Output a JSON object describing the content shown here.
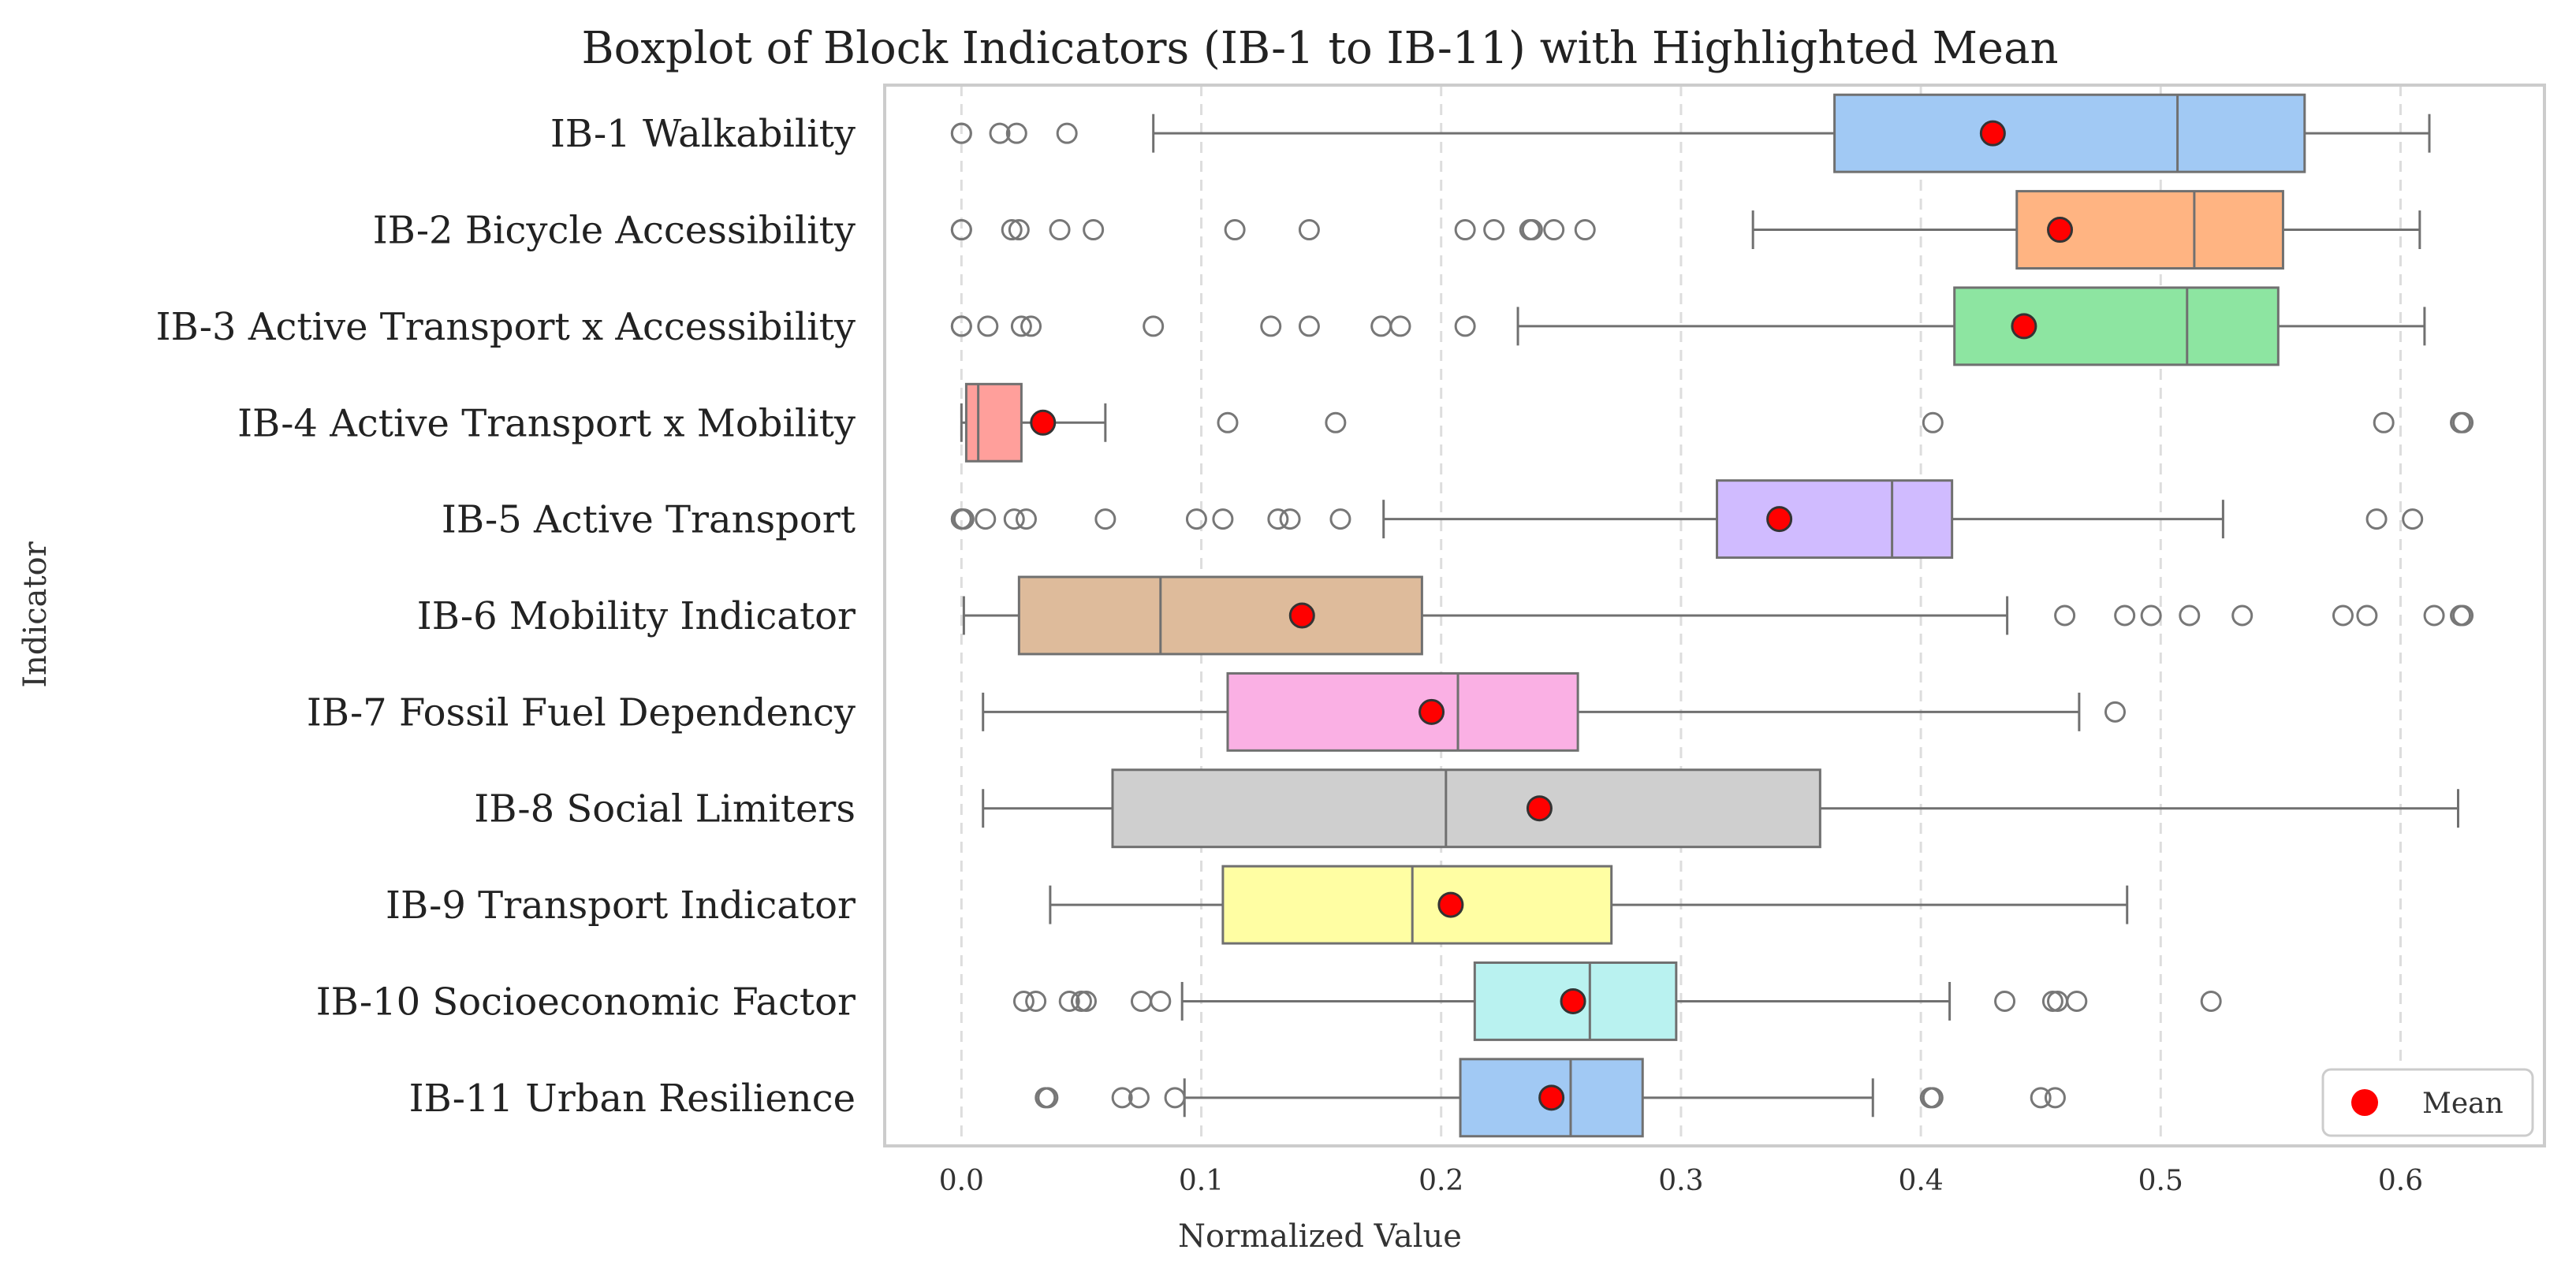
{
  "chart_data": {
    "type": "boxplot",
    "orientation": "horizontal",
    "title": "Boxplot of Block Indicators (IB-1 to IB-11) with Highlighted Mean",
    "xlabel": "Normalized Value",
    "ylabel": "Indicator",
    "xlim": [
      -0.032,
      0.66
    ],
    "xticks": [
      0.0,
      0.1,
      0.2,
      0.3,
      0.4,
      0.5,
      0.6
    ],
    "xtick_labels": [
      "0.0",
      "0.1",
      "0.2",
      "0.3",
      "0.4",
      "0.5",
      "0.6"
    ],
    "grid": "vertical-dashed",
    "legend": {
      "position": "bottom-right",
      "entries": [
        {
          "label": "Mean",
          "marker": "circle",
          "color": "#ff0000"
        }
      ]
    },
    "series": [
      {
        "name": "IB-1 Walkability",
        "color": "#a1c9f4",
        "whisker_low": 0.08,
        "q1": 0.364,
        "median": 0.507,
        "q3": 0.56,
        "whisker_high": 0.612,
        "mean": 0.43,
        "outliers": [
          0.0,
          0.0,
          0.016,
          0.023,
          0.044
        ]
      },
      {
        "name": "IB-2 Bicycle Accessibility",
        "color": "#ffb482",
        "whisker_low": 0.33,
        "q1": 0.44,
        "median": 0.514,
        "q3": 0.551,
        "whisker_high": 0.608,
        "mean": 0.458,
        "outliers": [
          0.0,
          0.0,
          0.021,
          0.024,
          0.041,
          0.055,
          0.114,
          0.145,
          0.21,
          0.222,
          0.237,
          0.238,
          0.247,
          0.26
        ]
      },
      {
        "name": "IB-3 Active Transport x Accessibility",
        "color": "#8de5a1",
        "whisker_low": 0.232,
        "q1": 0.414,
        "median": 0.511,
        "q3": 0.549,
        "whisker_high": 0.61,
        "mean": 0.443,
        "outliers": [
          0.0,
          0.0,
          0.011,
          0.025,
          0.029,
          0.08,
          0.129,
          0.145,
          0.175,
          0.183,
          0.21
        ]
      },
      {
        "name": "IB-4 Active Transport x Mobility",
        "color": "#ff9f9b",
        "whisker_low": 0.0,
        "q1": 0.002,
        "median": 0.007,
        "q3": 0.025,
        "whisker_high": 0.06,
        "mean": 0.034,
        "outliers": [
          0.111,
          0.156,
          0.405,
          0.593,
          0.625,
          0.626
        ]
      },
      {
        "name": "IB-5 Active Transport",
        "color": "#d0bbff",
        "whisker_low": 0.176,
        "q1": 0.315,
        "median": 0.388,
        "q3": 0.413,
        "whisker_high": 0.526,
        "mean": 0.341,
        "outliers": [
          0.0,
          0.0,
          0.001,
          0.01,
          0.022,
          0.027,
          0.06,
          0.098,
          0.109,
          0.132,
          0.137,
          0.158,
          0.59,
          0.605
        ]
      },
      {
        "name": "IB-6 Mobility Indicator",
        "color": "#debb9b",
        "whisker_low": 0.001,
        "q1": 0.024,
        "median": 0.083,
        "q3": 0.192,
        "whisker_high": 0.436,
        "mean": 0.142,
        "outliers": [
          0.46,
          0.485,
          0.496,
          0.512,
          0.534,
          0.576,
          0.586,
          0.614,
          0.625,
          0.626
        ]
      },
      {
        "name": "IB-7 Fossil Fuel Dependency",
        "color": "#fab0e4",
        "whisker_low": 0.009,
        "q1": 0.111,
        "median": 0.207,
        "q3": 0.257,
        "whisker_high": 0.466,
        "mean": 0.196,
        "outliers": [
          0.481
        ]
      },
      {
        "name": "IB-8 Social Limiters",
        "color": "#cfcfcf",
        "whisker_low": 0.009,
        "q1": 0.063,
        "median": 0.202,
        "q3": 0.358,
        "whisker_high": 0.624,
        "mean": 0.241,
        "outliers": []
      },
      {
        "name": "IB-9 Transport Indicator",
        "color": "#fffea3",
        "whisker_low": 0.037,
        "q1": 0.109,
        "median": 0.188,
        "q3": 0.271,
        "whisker_high": 0.486,
        "mean": 0.204,
        "outliers": []
      },
      {
        "name": "IB-10 Socioeconomic Factor",
        "color": "#b9f2f0",
        "whisker_low": 0.092,
        "q1": 0.214,
        "median": 0.262,
        "q3": 0.298,
        "whisker_high": 0.412,
        "mean": 0.255,
        "outliers": [
          0.026,
          0.031,
          0.045,
          0.05,
          0.052,
          0.075,
          0.083,
          0.435,
          0.455,
          0.457,
          0.465,
          0.521
        ]
      },
      {
        "name": "IB-11 Urban Resilience",
        "color": "#a1c9f4",
        "whisker_low": 0.093,
        "q1": 0.208,
        "median": 0.254,
        "q3": 0.284,
        "whisker_high": 0.38,
        "mean": 0.246,
        "outliers": [
          0.035,
          0.036,
          0.067,
          0.074,
          0.089,
          0.404,
          0.405,
          0.45,
          0.456
        ]
      }
    ]
  }
}
